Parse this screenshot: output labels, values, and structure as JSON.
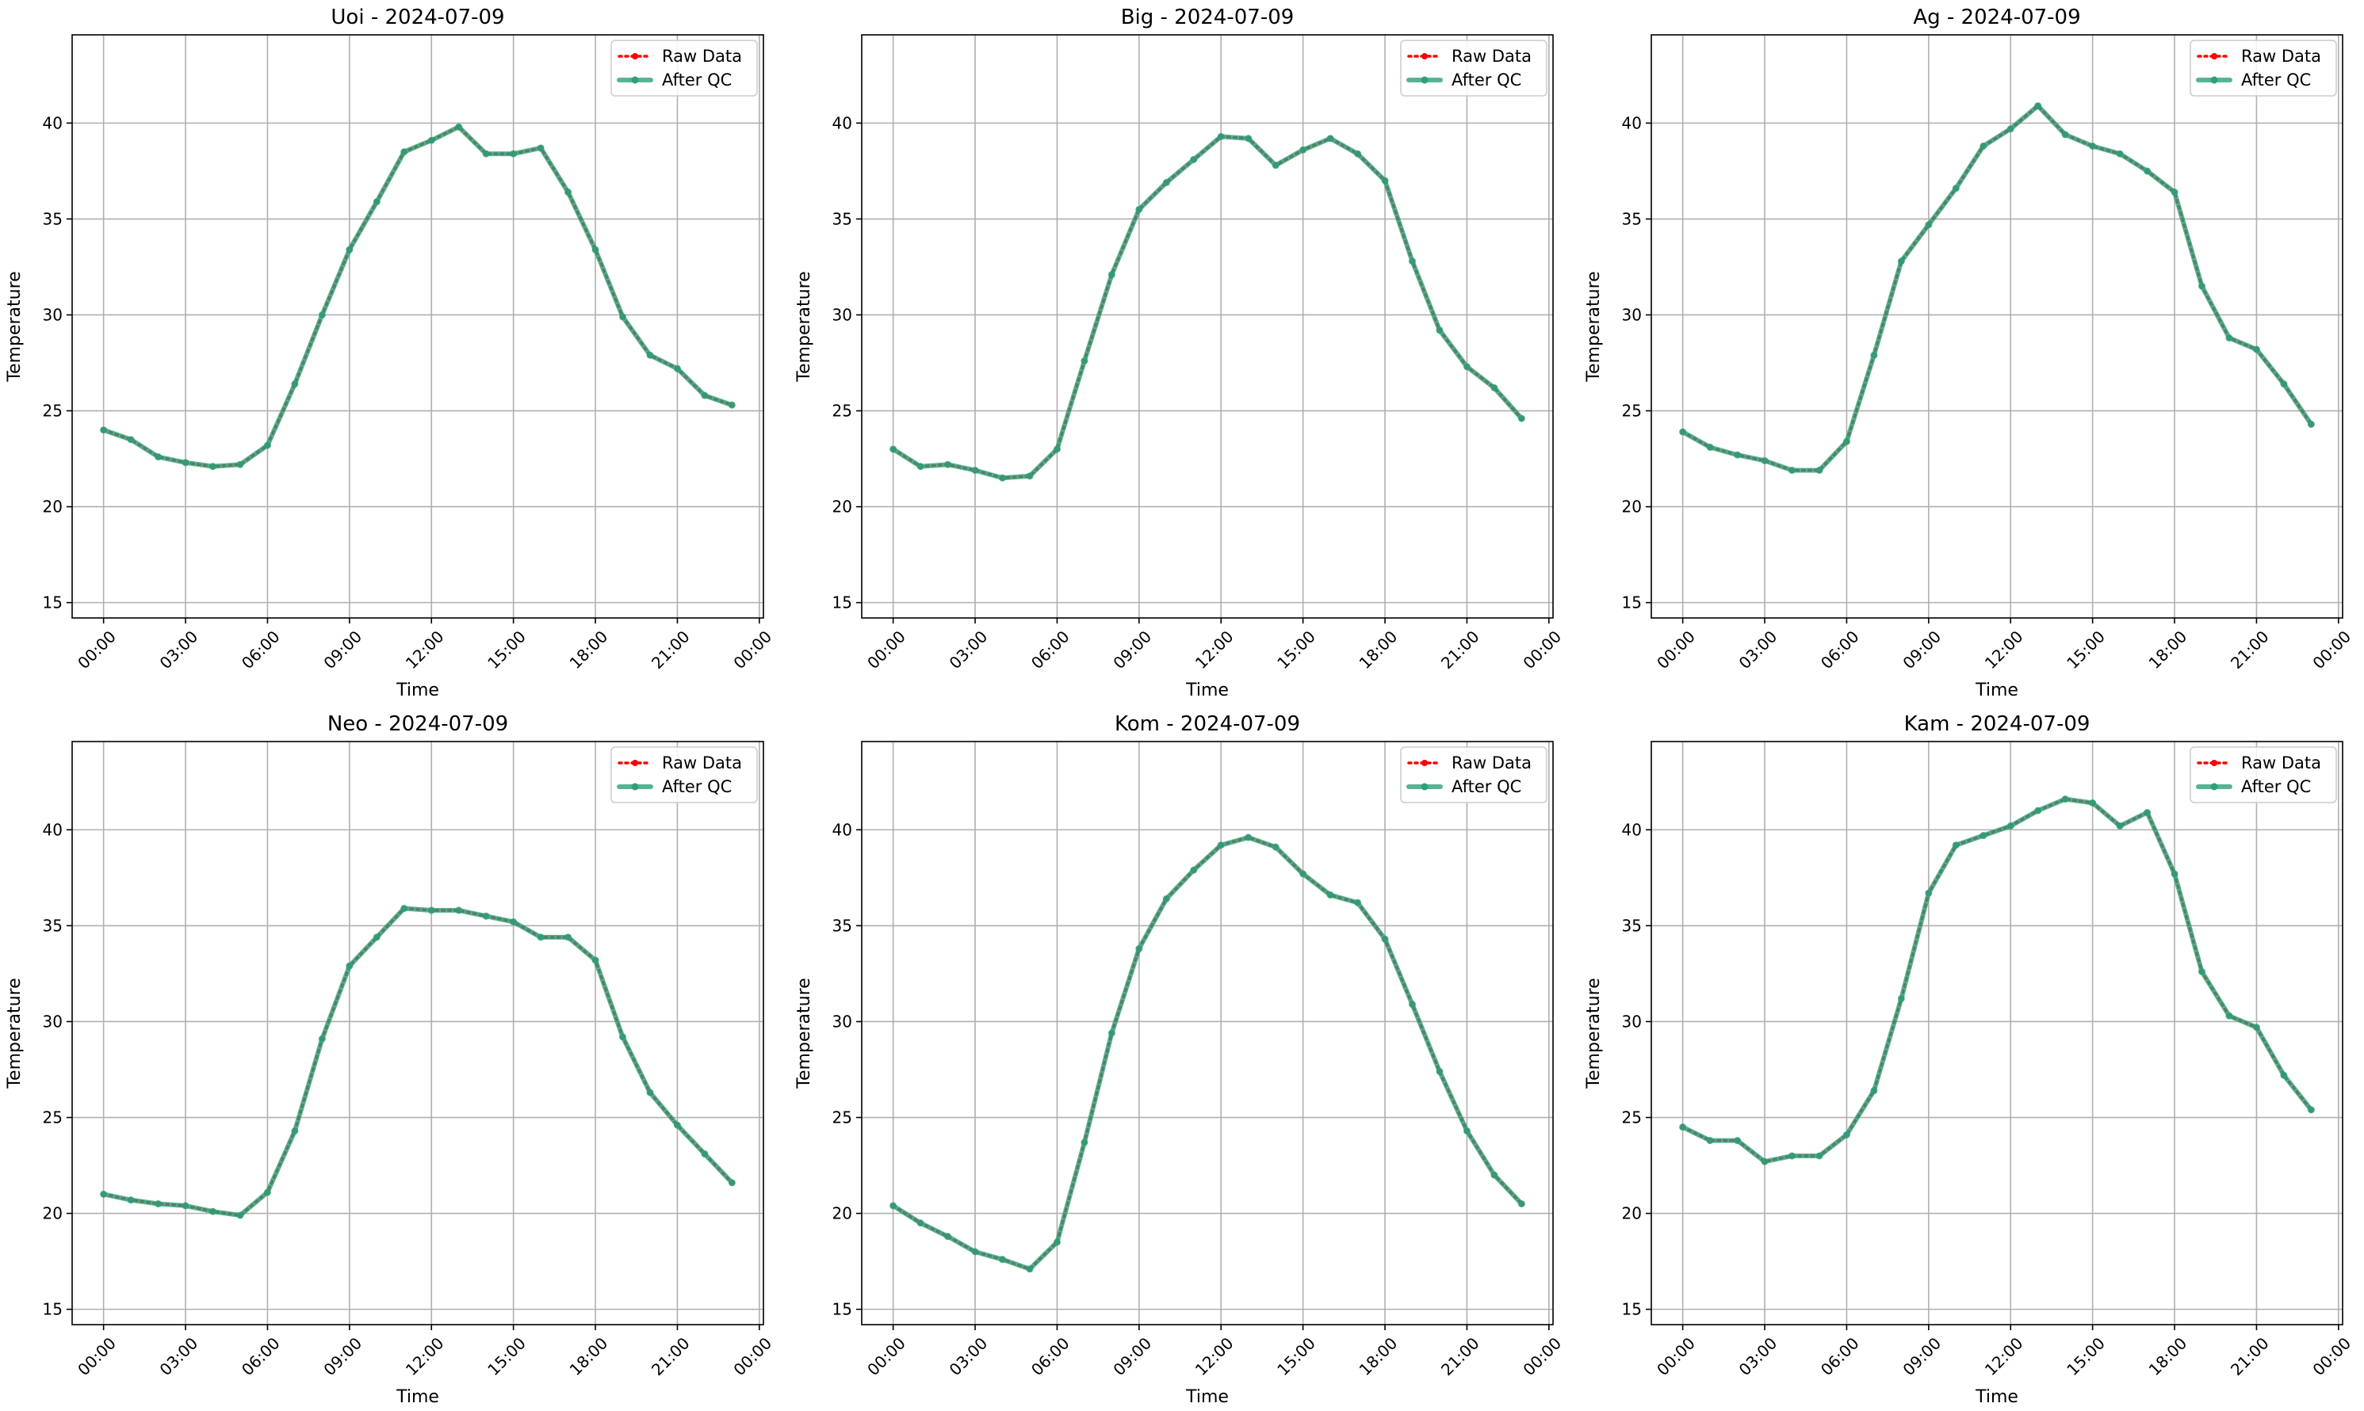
{
  "chart_data": [
    {
      "type": "line",
      "title": "Uoi - 2024-07-09",
      "xlabel": "Time",
      "ylabel": "Temperature",
      "x": [
        "00:00",
        "01:00",
        "02:00",
        "03:00",
        "04:00",
        "05:00",
        "06:00",
        "07:00",
        "08:00",
        "09:00",
        "10:00",
        "11:00",
        "12:00",
        "13:00",
        "14:00",
        "15:00",
        "16:00",
        "17:00",
        "18:00",
        "19:00",
        "20:00",
        "21:00",
        "22:00",
        "23:00"
      ],
      "x_ticks": [
        "00:00",
        "03:00",
        "06:00",
        "09:00",
        "12:00",
        "15:00",
        "18:00",
        "21:00",
        "00:00"
      ],
      "y_ticks": [
        15,
        20,
        25,
        30,
        35,
        40
      ],
      "ylim": [
        14.2,
        44.6
      ],
      "grid": true,
      "legend": "top-right",
      "series": [
        {
          "name": "Raw Data",
          "color": "#ff0000",
          "style": "dotted",
          "values": [
            24.0,
            23.5,
            22.6,
            22.3,
            22.1,
            22.2,
            23.2,
            26.4,
            30.0,
            33.4,
            35.9,
            38.5,
            39.1,
            39.8,
            38.4,
            38.4,
            38.7,
            36.4,
            33.4,
            29.9,
            27.9,
            27.2,
            25.8,
            25.3
          ]
        },
        {
          "name": "After QC",
          "color": "#2ca07a",
          "style": "solid",
          "values": [
            24.0,
            23.5,
            22.6,
            22.3,
            22.1,
            22.2,
            23.2,
            26.4,
            30.0,
            33.4,
            35.9,
            38.5,
            39.1,
            39.8,
            38.4,
            38.4,
            38.7,
            36.4,
            33.4,
            29.9,
            27.9,
            27.2,
            25.8,
            25.3
          ]
        }
      ]
    },
    {
      "type": "line",
      "title": "Big - 2024-07-09",
      "xlabel": "Time",
      "ylabel": "Temperature",
      "x": [
        "00:00",
        "01:00",
        "02:00",
        "03:00",
        "04:00",
        "05:00",
        "06:00",
        "07:00",
        "08:00",
        "09:00",
        "10:00",
        "11:00",
        "12:00",
        "13:00",
        "14:00",
        "15:00",
        "16:00",
        "17:00",
        "18:00",
        "19:00",
        "20:00",
        "21:00",
        "22:00",
        "23:00"
      ],
      "x_ticks": [
        "00:00",
        "03:00",
        "06:00",
        "09:00",
        "12:00",
        "15:00",
        "18:00",
        "21:00",
        "00:00"
      ],
      "y_ticks": [
        15,
        20,
        25,
        30,
        35,
        40
      ],
      "ylim": [
        14.2,
        44.6
      ],
      "grid": true,
      "legend": "top-right",
      "series": [
        {
          "name": "Raw Data",
          "color": "#ff0000",
          "style": "dotted",
          "values": [
            23.0,
            22.1,
            22.2,
            21.9,
            21.5,
            21.6,
            23.0,
            27.6,
            32.1,
            35.5,
            36.9,
            38.1,
            39.3,
            39.2,
            37.8,
            38.6,
            39.2,
            38.4,
            37.0,
            32.8,
            29.2,
            27.3,
            26.2,
            24.6
          ]
        },
        {
          "name": "After QC",
          "color": "#2ca07a",
          "style": "solid",
          "values": [
            23.0,
            22.1,
            22.2,
            21.9,
            21.5,
            21.6,
            23.0,
            27.6,
            32.1,
            35.5,
            36.9,
            38.1,
            39.3,
            39.2,
            37.8,
            38.6,
            39.2,
            38.4,
            37.0,
            32.8,
            29.2,
            27.3,
            26.2,
            24.6
          ]
        }
      ]
    },
    {
      "type": "line",
      "title": "Ag - 2024-07-09",
      "xlabel": "Time",
      "ylabel": "Temperature",
      "x": [
        "00:00",
        "01:00",
        "02:00",
        "03:00",
        "04:00",
        "05:00",
        "06:00",
        "07:00",
        "08:00",
        "09:00",
        "10:00",
        "11:00",
        "12:00",
        "13:00",
        "14:00",
        "15:00",
        "16:00",
        "17:00",
        "18:00",
        "19:00",
        "20:00",
        "21:00",
        "22:00",
        "23:00"
      ],
      "x_ticks": [
        "00:00",
        "03:00",
        "06:00",
        "09:00",
        "12:00",
        "15:00",
        "18:00",
        "21:00",
        "00:00"
      ],
      "y_ticks": [
        15,
        20,
        25,
        30,
        35,
        40
      ],
      "ylim": [
        14.2,
        44.6
      ],
      "grid": true,
      "legend": "top-right",
      "series": [
        {
          "name": "Raw Data",
          "color": "#ff0000",
          "style": "dotted",
          "values": [
            23.9,
            23.1,
            22.7,
            22.4,
            21.9,
            21.9,
            23.4,
            27.9,
            32.8,
            34.7,
            36.6,
            38.8,
            39.7,
            40.9,
            39.4,
            38.8,
            38.4,
            37.5,
            36.4,
            31.5,
            28.8,
            28.2,
            26.4,
            24.3
          ]
        },
        {
          "name": "After QC",
          "color": "#2ca07a",
          "style": "solid",
          "values": [
            23.9,
            23.1,
            22.7,
            22.4,
            21.9,
            21.9,
            23.4,
            27.9,
            32.8,
            34.7,
            36.6,
            38.8,
            39.7,
            40.9,
            39.4,
            38.8,
            38.4,
            37.5,
            36.4,
            31.5,
            28.8,
            28.2,
            26.4,
            24.3
          ]
        }
      ]
    },
    {
      "type": "line",
      "title": "Neo - 2024-07-09",
      "xlabel": "Time",
      "ylabel": "Temperature",
      "x": [
        "00:00",
        "01:00",
        "02:00",
        "03:00",
        "04:00",
        "05:00",
        "06:00",
        "07:00",
        "08:00",
        "09:00",
        "10:00",
        "11:00",
        "12:00",
        "13:00",
        "14:00",
        "15:00",
        "16:00",
        "17:00",
        "18:00",
        "19:00",
        "20:00",
        "21:00",
        "22:00",
        "23:00"
      ],
      "x_ticks": [
        "00:00",
        "03:00",
        "06:00",
        "09:00",
        "12:00",
        "15:00",
        "18:00",
        "21:00",
        "00:00"
      ],
      "y_ticks": [
        15,
        20,
        25,
        30,
        35,
        40
      ],
      "ylim": [
        14.2,
        44.6
      ],
      "grid": true,
      "legend": "top-right",
      "series": [
        {
          "name": "Raw Data",
          "color": "#ff0000",
          "style": "dotted",
          "values": [
            21.0,
            20.7,
            20.5,
            20.4,
            20.1,
            19.9,
            21.1,
            24.3,
            29.1,
            32.9,
            34.4,
            35.9,
            35.8,
            35.8,
            35.5,
            35.2,
            34.4,
            34.4,
            33.2,
            29.2,
            26.3,
            24.6,
            23.1,
            21.6
          ]
        },
        {
          "name": "After QC",
          "color": "#2ca07a",
          "style": "solid",
          "values": [
            21.0,
            20.7,
            20.5,
            20.4,
            20.1,
            19.9,
            21.1,
            24.3,
            29.1,
            32.9,
            34.4,
            35.9,
            35.8,
            35.8,
            35.5,
            35.2,
            34.4,
            34.4,
            33.2,
            29.2,
            26.3,
            24.6,
            23.1,
            21.6
          ]
        }
      ]
    },
    {
      "type": "line",
      "title": "Kom - 2024-07-09",
      "xlabel": "Time",
      "ylabel": "Temperature",
      "x": [
        "00:00",
        "01:00",
        "02:00",
        "03:00",
        "04:00",
        "05:00",
        "06:00",
        "07:00",
        "08:00",
        "09:00",
        "10:00",
        "11:00",
        "12:00",
        "13:00",
        "14:00",
        "15:00",
        "16:00",
        "17:00",
        "18:00",
        "19:00",
        "20:00",
        "21:00",
        "22:00",
        "23:00"
      ],
      "x_ticks": [
        "00:00",
        "03:00",
        "06:00",
        "09:00",
        "12:00",
        "15:00",
        "18:00",
        "21:00",
        "00:00"
      ],
      "y_ticks": [
        15,
        20,
        25,
        30,
        35,
        40
      ],
      "ylim": [
        14.2,
        44.6
      ],
      "grid": true,
      "legend": "top-right",
      "series": [
        {
          "name": "Raw Data",
          "color": "#ff0000",
          "style": "dotted",
          "values": [
            20.4,
            19.5,
            18.8,
            18.0,
            17.6,
            17.1,
            18.5,
            23.7,
            29.4,
            33.8,
            36.4,
            37.9,
            39.2,
            39.6,
            39.1,
            37.7,
            36.6,
            36.2,
            34.3,
            30.9,
            27.4,
            24.3,
            22.0,
            20.5
          ]
        },
        {
          "name": "After QC",
          "color": "#2ca07a",
          "style": "solid",
          "values": [
            20.4,
            19.5,
            18.8,
            18.0,
            17.6,
            17.1,
            18.5,
            23.7,
            29.4,
            33.8,
            36.4,
            37.9,
            39.2,
            39.6,
            39.1,
            37.7,
            36.6,
            36.2,
            34.3,
            30.9,
            27.4,
            24.3,
            22.0,
            20.5
          ]
        }
      ]
    },
    {
      "type": "line",
      "title": "Kam - 2024-07-09",
      "xlabel": "Time",
      "ylabel": "Temperature",
      "x": [
        "00:00",
        "01:00",
        "02:00",
        "03:00",
        "04:00",
        "05:00",
        "06:00",
        "07:00",
        "08:00",
        "09:00",
        "10:00",
        "11:00",
        "12:00",
        "13:00",
        "14:00",
        "15:00",
        "16:00",
        "17:00",
        "18:00",
        "19:00",
        "20:00",
        "21:00",
        "22:00",
        "23:00"
      ],
      "x_ticks": [
        "00:00",
        "03:00",
        "06:00",
        "09:00",
        "12:00",
        "15:00",
        "18:00",
        "21:00",
        "00:00"
      ],
      "y_ticks": [
        15,
        20,
        25,
        30,
        35,
        40
      ],
      "ylim": [
        14.2,
        44.6
      ],
      "grid": true,
      "legend": "top-right",
      "series": [
        {
          "name": "Raw Data",
          "color": "#ff0000",
          "style": "dotted",
          "values": [
            24.5,
            23.8,
            23.8,
            22.7,
            23.0,
            23.0,
            24.1,
            26.4,
            31.2,
            36.7,
            39.2,
            39.7,
            40.2,
            41.0,
            41.6,
            41.4,
            40.2,
            40.9,
            37.7,
            32.6,
            30.3,
            29.7,
            27.2,
            25.4
          ]
        },
        {
          "name": "After QC",
          "color": "#2ca07a",
          "style": "solid",
          "values": [
            24.5,
            23.8,
            23.8,
            22.7,
            23.0,
            23.0,
            24.1,
            26.4,
            31.2,
            36.7,
            39.2,
            39.7,
            40.2,
            41.0,
            41.6,
            41.4,
            40.2,
            40.9,
            37.7,
            32.6,
            30.3,
            29.7,
            27.2,
            25.4
          ]
        }
      ]
    }
  ]
}
